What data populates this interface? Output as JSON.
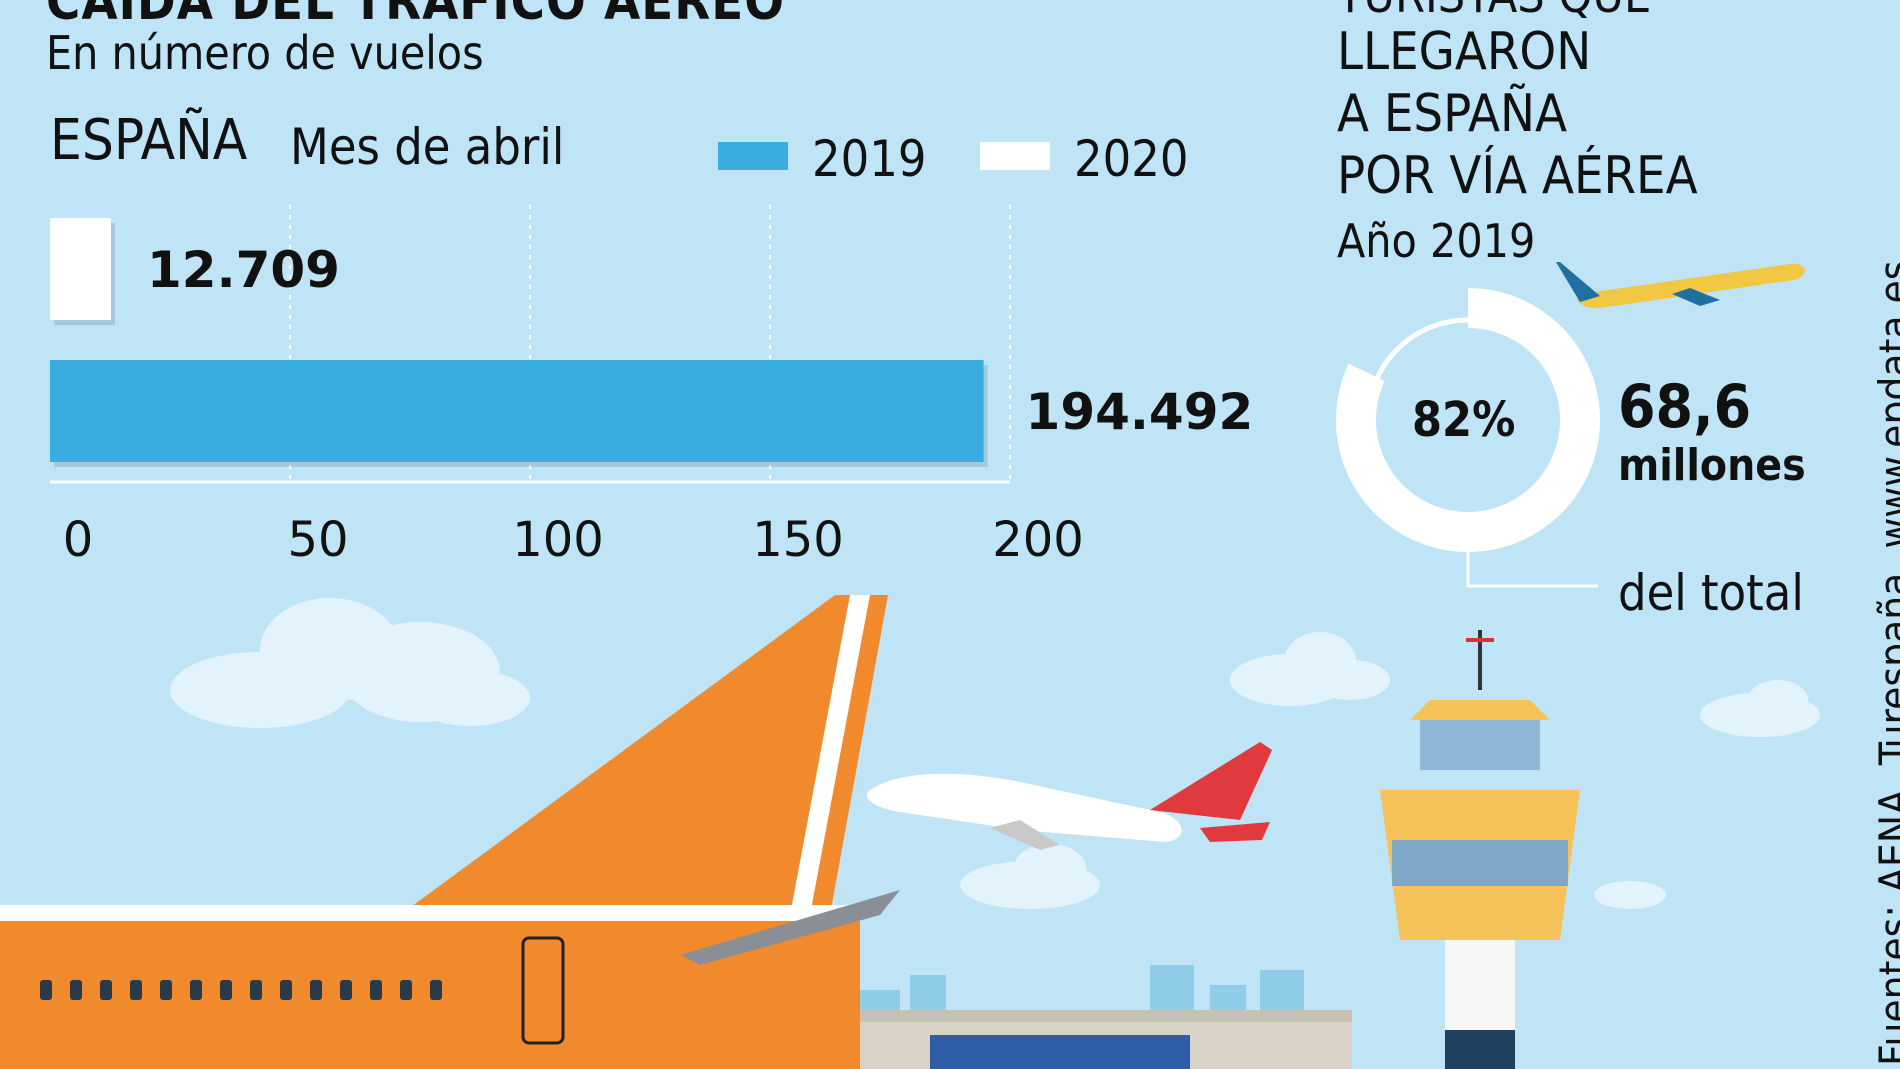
{
  "header": {
    "title": "CAÍDA DEL TRÁFICO AÉREO",
    "subtitle": "En número de vuelos"
  },
  "chart_labels": {
    "region": "ESPAÑA",
    "period": "Mes de abril"
  },
  "chart_data": [
    {
      "type": "bar",
      "orientation": "horizontal",
      "series": [
        {
          "name": "2020",
          "values": [
            12.709
          ],
          "value_label": "12.709",
          "color": "#ffffff"
        },
        {
          "name": "2019",
          "values": [
            194.492
          ],
          "value_label": "194.492",
          "color": "#39ade0"
        }
      ],
      "xlim": [
        0,
        200
      ],
      "x_ticks": [
        "0",
        "50",
        "100",
        "150",
        "200"
      ],
      "grid": true,
      "legend_position": "top-right"
    },
    {
      "type": "pie",
      "style": "donut",
      "values": [
        82,
        18
      ],
      "center_label": "82%",
      "value_text": "68,6",
      "unit_text": "millones",
      "note": "del total",
      "colors": [
        "#ffffff",
        "#bfe4f6"
      ]
    }
  ],
  "side_panel": {
    "lines": [
      "TURISTAS QUE",
      "LLEGARON",
      "A ESPAÑA",
      "POR VÍA AÉREA",
      "Año 2019"
    ]
  },
  "source": "Fuentes: AENA, Turespaña,  www.epdata.es",
  "colors": {
    "background": "#bfe4f6",
    "bar_2019": "#39ade0",
    "bar_2020": "#ffffff",
    "plane_tail": "#f08a2c",
    "tower": "#f5c35a"
  }
}
